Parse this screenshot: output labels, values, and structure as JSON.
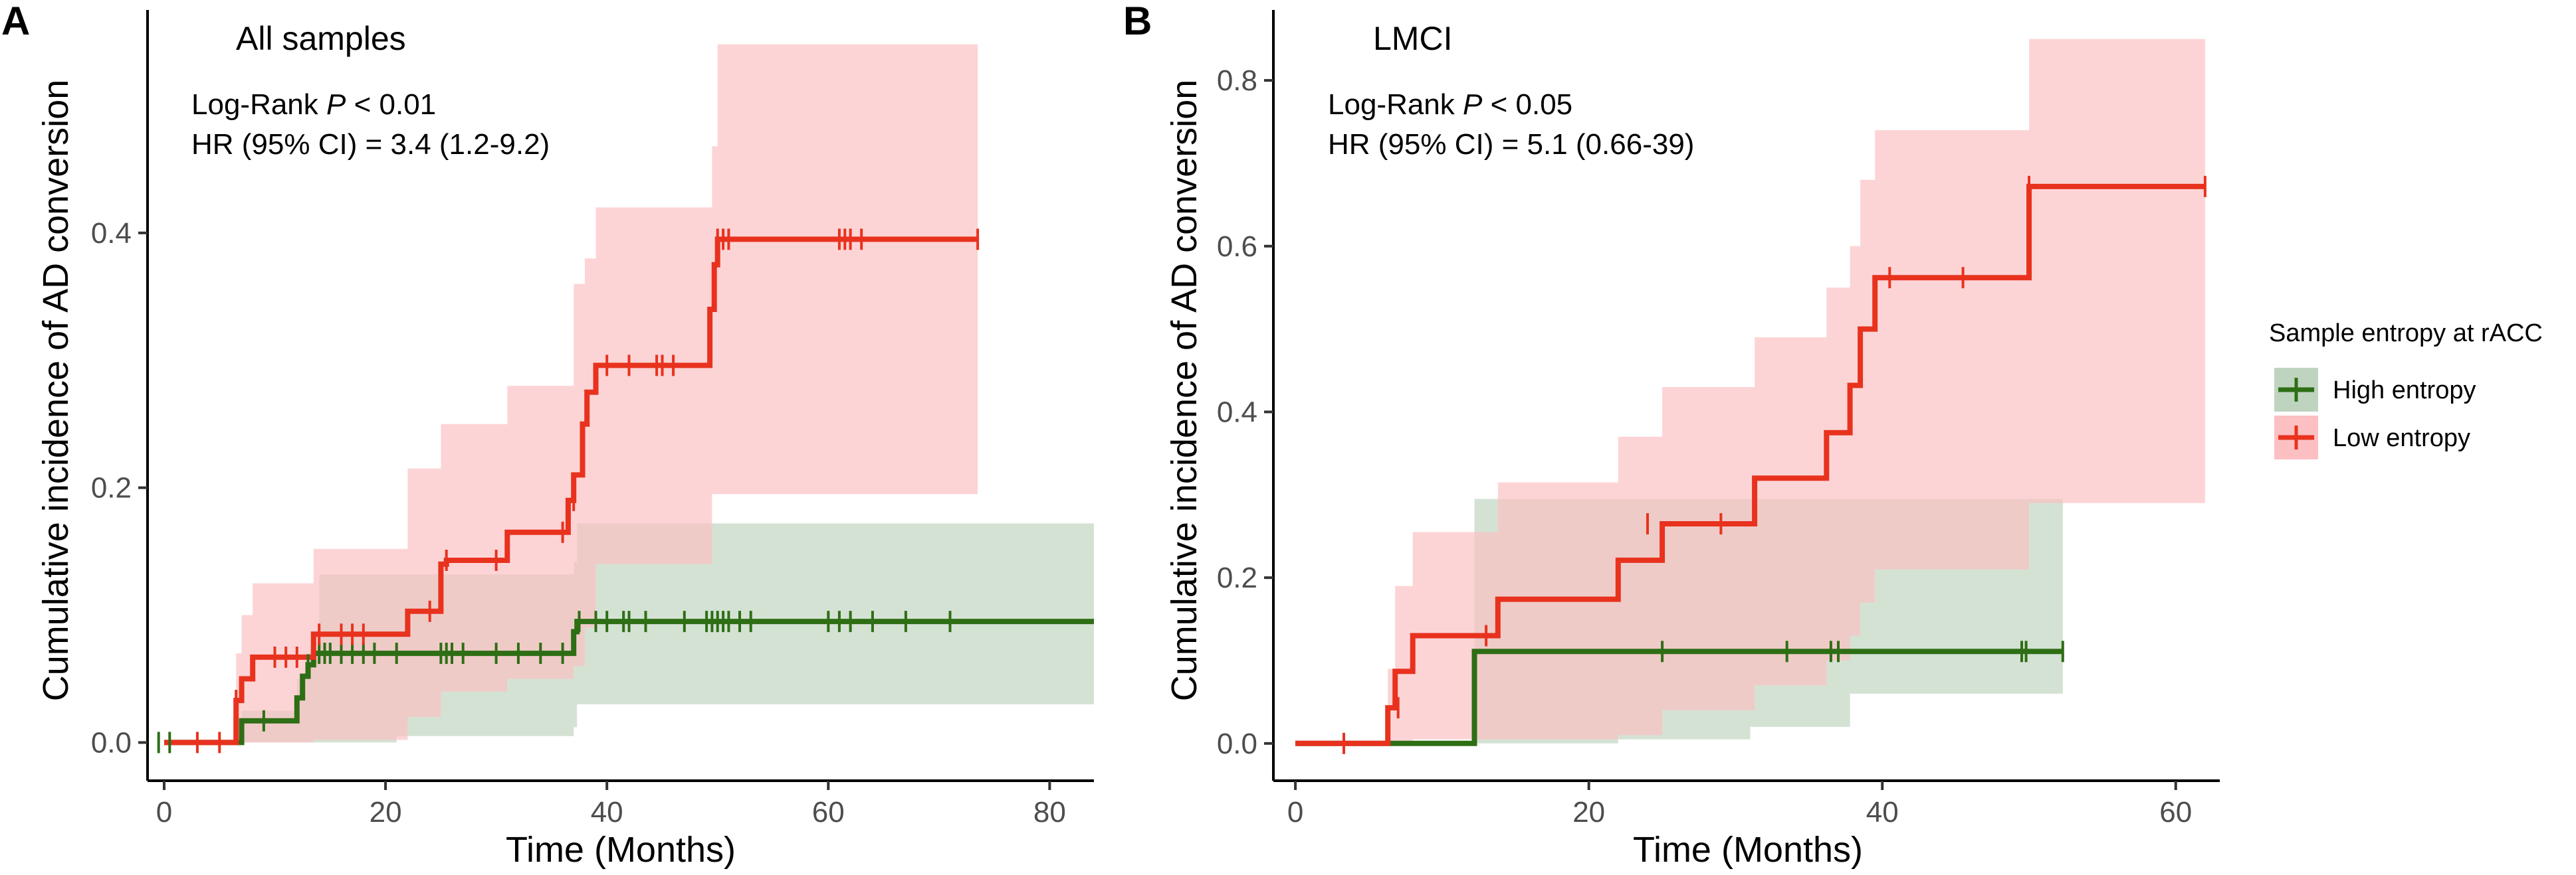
{
  "colors": {
    "low_line": "#e8321e",
    "low_band": "#fcbfc2",
    "high_line": "#2e6e15",
    "high_band": "#bfd4bf",
    "overlap_band": "#d99b8b"
  },
  "legend": {
    "title": "Sample entropy at rACC",
    "items": [
      {
        "name": "High entropy",
        "color": "#2e6e15",
        "fill": "#bfd4bf"
      },
      {
        "name": "Low entropy",
        "color": "#e8321e",
        "fill": "#fcbfc2"
      }
    ]
  },
  "chart_data": [
    {
      "type": "line",
      "panel_letter": "A",
      "title": "All samples",
      "annotations": [
        "Log-Rank ",
        "P",
        " < 0.01",
        "HR (95% CI) = 3.4 (1.2-9.2)"
      ],
      "xlabel": "Time (Months)",
      "ylabel": "Cumulative incidence of AD conversion",
      "xlim": [
        -1.5,
        84
      ],
      "ylim": [
        -0.03,
        0.575
      ],
      "xticks": [
        0,
        20,
        40,
        60,
        80
      ],
      "yticks": [
        0.0,
        0.2,
        0.4
      ],
      "ytick_labels": [
        "0.0",
        "0.2",
        "0.4"
      ],
      "series": [
        {
          "name": "High entropy",
          "step_x": [
            0,
            7,
            12,
            12.5,
            13,
            13.5,
            37,
            37.3,
            84
          ],
          "step_y": [
            0,
            0.017,
            0.035,
            0.052,
            0.061,
            0.07,
            0.087,
            0.095,
            0.095
          ],
          "band_x": [
            0,
            7,
            12,
            13,
            14,
            21,
            37,
            37.3,
            84
          ],
          "band_lower": [
            0,
            0,
            0,
            0,
            0,
            0.005,
            0.012,
            0.03,
            0.012
          ],
          "band_upper": [
            0,
            0.025,
            0.05,
            0.07,
            0.132,
            0.132,
            0.142,
            0.172,
            0.172
          ],
          "censor_x": [
            -0.5,
            0.5,
            9,
            13,
            14,
            14.5,
            15,
            16,
            17,
            18,
            19,
            21,
            25,
            25.5,
            26,
            27,
            30,
            32,
            34,
            36,
            37.5,
            39,
            40,
            41.5,
            42,
            43.5,
            47,
            49,
            49.5,
            50,
            50.5,
            51,
            52,
            53,
            60,
            61,
            62,
            64,
            67,
            71
          ],
          "censor_y": [
            0,
            0,
            0.017,
            0.061,
            0.07,
            0.07,
            0.07,
            0.07,
            0.07,
            0.07,
            0.07,
            0.07,
            0.07,
            0.07,
            0.07,
            0.07,
            0.07,
            0.07,
            0.07,
            0.07,
            0.095,
            0.095,
            0.095,
            0.095,
            0.095,
            0.095,
            0.095,
            0.095,
            0.095,
            0.095,
            0.095,
            0.095,
            0.095,
            0.095,
            0.095,
            0.095,
            0.095,
            0.095,
            0.095,
            0.095
          ]
        },
        {
          "name": "Low entropy",
          "step_x": [
            0,
            6.5,
            7,
            8,
            13.5,
            22,
            25,
            25.5,
            31,
            36.5,
            37,
            37.8,
            38.2,
            39,
            49.3,
            49.7,
            50,
            73.5
          ],
          "step_y": [
            0,
            0.033,
            0.05,
            0.067,
            0.085,
            0.103,
            0.14,
            0.143,
            0.165,
            0.19,
            0.21,
            0.25,
            0.275,
            0.296,
            0.34,
            0.375,
            0.395,
            0.395
          ],
          "band_x": [
            0,
            6.5,
            7,
            8,
            13.5,
            22,
            25,
            31,
            37,
            38,
            39,
            49.5,
            50,
            73.5
          ],
          "band_lower": [
            0,
            0,
            0,
            0,
            0.002,
            0.02,
            0.04,
            0.05,
            0.06,
            0.09,
            0.14,
            0.195,
            0.195,
            0.195
          ],
          "band_upper": [
            0,
            0.07,
            0.1,
            0.125,
            0.152,
            0.215,
            0.25,
            0.28,
            0.36,
            0.38,
            0.42,
            0.468,
            0.548,
            0.548
          ],
          "censor_x": [
            3,
            5,
            6.5,
            10,
            11,
            12,
            14,
            16,
            17,
            18,
            24,
            25.5,
            30,
            36,
            37,
            40,
            42,
            44.5,
            45,
            46,
            50,
            50.5,
            51,
            61,
            61.5,
            62,
            63,
            73.5
          ],
          "censor_y": [
            0,
            0,
            0.033,
            0.067,
            0.067,
            0.067,
            0.085,
            0.085,
            0.085,
            0.085,
            0.103,
            0.143,
            0.143,
            0.165,
            0.19,
            0.296,
            0.296,
            0.296,
            0.296,
            0.296,
            0.395,
            0.395,
            0.395,
            0.395,
            0.395,
            0.395,
            0.395,
            0.395
          ]
        }
      ]
    },
    {
      "type": "line",
      "panel_letter": "B",
      "title": "LMCI",
      "annotations": [
        "Log-Rank ",
        "P",
        " < 0.05",
        "HR (95% CI) = 5.1 (0.66-39)"
      ],
      "xlabel": "Time (Months)",
      "ylabel": "Cumulative incidence of AD conversion",
      "xlim": [
        -1.5,
        63
      ],
      "ylim": [
        -0.045,
        0.885
      ],
      "xticks": [
        0,
        20,
        40,
        60
      ],
      "yticks": [
        0.0,
        0.2,
        0.4,
        0.6,
        0.8
      ],
      "ytick_labels": [
        "0.0",
        "0.2",
        "0.4",
        "0.6",
        "0.8"
      ],
      "series": [
        {
          "name": "High entropy",
          "step_x": [
            0,
            12.2,
            52.3
          ],
          "step_y": [
            0,
            0.111,
            0.111
          ],
          "band_x": [
            0,
            12.2,
            22,
            31,
            37.8,
            52.3
          ],
          "band_lower": [
            0,
            0,
            0.005,
            0.02,
            0.06,
            0.06
          ],
          "band_upper": [
            0,
            0.295,
            0.295,
            0.295,
            0.295,
            0.295
          ],
          "censor_x": [
            25,
            33.5,
            36.5,
            37,
            49.5,
            49.8,
            52.3
          ],
          "censor_y": [
            0.111,
            0.111,
            0.111,
            0.111,
            0.111,
            0.111,
            0.111
          ]
        },
        {
          "name": "Low entropy",
          "step_x": [
            0,
            6.3,
            6.8,
            8,
            13.8,
            22,
            25,
            31.3,
            36.2,
            37.8,
            38.5,
            39.5,
            50,
            62
          ],
          "step_y": [
            0,
            0.043,
            0.087,
            0.13,
            0.174,
            0.221,
            0.265,
            0.32,
            0.375,
            0.432,
            0.5,
            0.562,
            0.672,
            0.672
          ],
          "band_x": [
            0,
            6.3,
            6.8,
            8,
            13.8,
            22,
            25,
            31.3,
            36.2,
            37.8,
            38.5,
            39.5,
            50,
            62
          ],
          "band_lower": [
            0,
            0,
            0,
            0.005,
            0.005,
            0.01,
            0.04,
            0.07,
            0.1,
            0.13,
            0.17,
            0.21,
            0.29,
            0.29
          ],
          "band_upper": [
            0,
            0.09,
            0.19,
            0.255,
            0.315,
            0.37,
            0.43,
            0.49,
            0.55,
            0.6,
            0.68,
            0.74,
            0.85,
            0.85
          ],
          "censor_x": [
            3.3,
            7,
            13,
            24,
            29,
            40.5,
            45.5,
            50,
            62
          ],
          "censor_y": [
            0,
            0.043,
            0.13,
            0.265,
            0.265,
            0.562,
            0.562,
            0.672,
            0.672
          ]
        }
      ]
    }
  ]
}
